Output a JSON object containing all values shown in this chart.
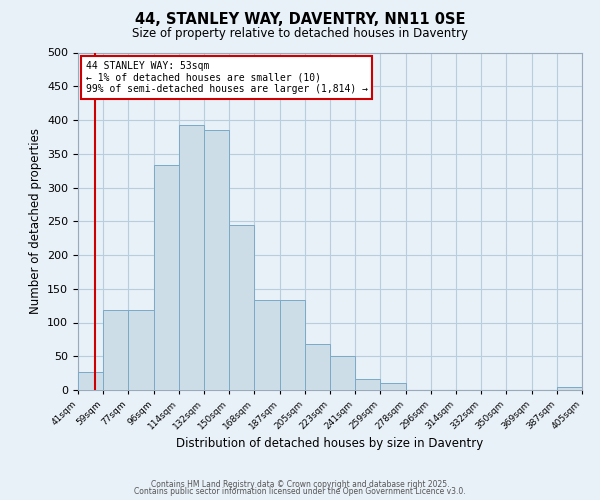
{
  "title": "44, STANLEY WAY, DAVENTRY, NN11 0SE",
  "subtitle": "Size of property relative to detached houses in Daventry",
  "xlabel": "Distribution of detached houses by size in Daventry",
  "ylabel": "Number of detached properties",
  "bin_labels": [
    "41sqm",
    "59sqm",
    "77sqm",
    "96sqm",
    "114sqm",
    "132sqm",
    "150sqm",
    "168sqm",
    "187sqm",
    "205sqm",
    "223sqm",
    "241sqm",
    "259sqm",
    "278sqm",
    "296sqm",
    "314sqm",
    "332sqm",
    "350sqm",
    "369sqm",
    "387sqm",
    "405sqm"
  ],
  "bin_edges": [
    41,
    59,
    77,
    96,
    114,
    132,
    150,
    168,
    187,
    205,
    223,
    241,
    259,
    278,
    296,
    314,
    332,
    350,
    369,
    387,
    405
  ],
  "bar_heights": [
    27,
    118,
    118,
    333,
    393,
    385,
    245,
    133,
    133,
    68,
    50,
    17,
    11,
    0,
    0,
    0,
    0,
    0,
    0,
    5
  ],
  "bar_color": "#ccdde8",
  "bar_edgecolor": "#7aaac8",
  "grid_color": "#b8cedd",
  "bg_color": "#e8f0f8",
  "vline_x": 53,
  "vline_color": "#cc0000",
  "annotation_text_line1": "44 STANLEY WAY: 53sqm",
  "annotation_text_line2": "← 1% of detached houses are smaller (10)",
  "annotation_text_line3": "99% of semi-detached houses are larger (1,814) →",
  "annotation_box_facecolor": "#ffffff",
  "annotation_box_edgecolor": "#cc0000",
  "ylim": [
    0,
    500
  ],
  "yticks": [
    0,
    50,
    100,
    150,
    200,
    250,
    300,
    350,
    400,
    450,
    500
  ],
  "footer1": "Contains HM Land Registry data © Crown copyright and database right 2025.",
  "footer2": "Contains public sector information licensed under the Open Government Licence v3.0."
}
